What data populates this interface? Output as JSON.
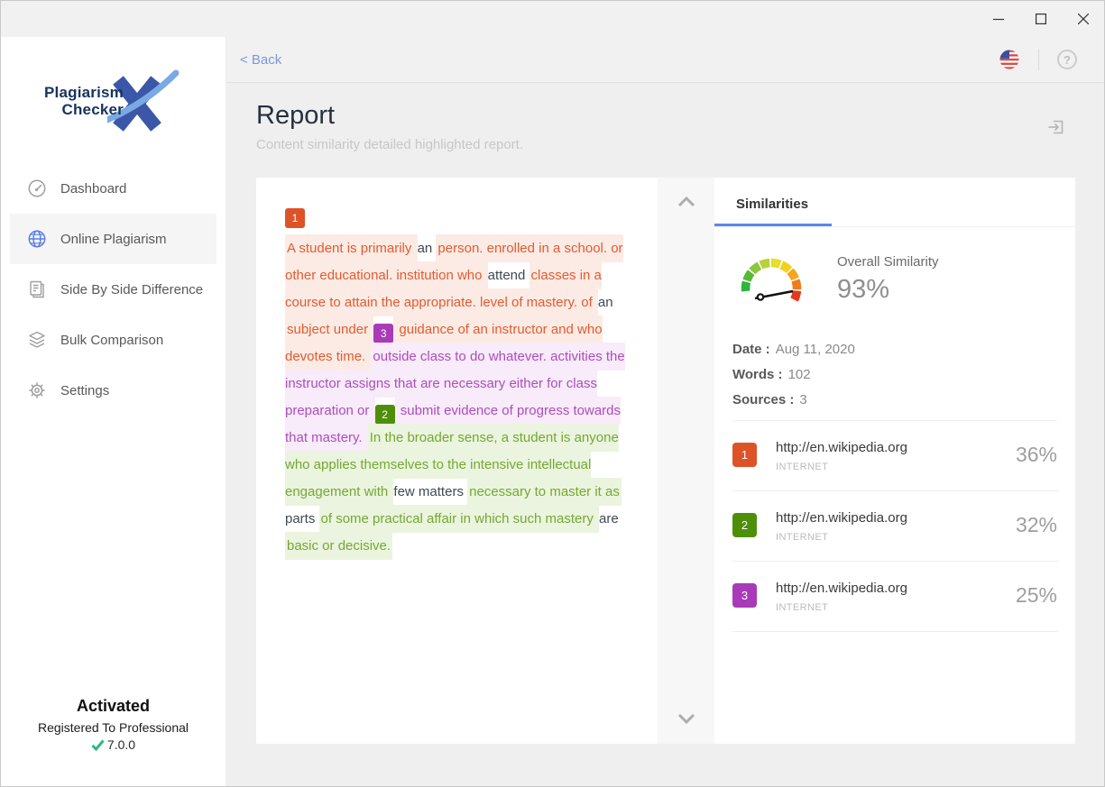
{
  "win": {
    "controls": [
      "minimize",
      "maximize",
      "close"
    ]
  },
  "sidebar": {
    "logo": {
      "line1": "Plagiarism",
      "line2": "Checker",
      "mark": "X"
    },
    "items": [
      {
        "label": "Dashboard",
        "icon": "speedometer-icon",
        "active": false
      },
      {
        "label": "Online Plagiarism",
        "icon": "globe-icon",
        "active": true
      },
      {
        "label": "Side By Side Difference",
        "icon": "side-by-side-icon",
        "active": false
      },
      {
        "label": "Bulk Comparison",
        "icon": "layers-icon",
        "active": false
      },
      {
        "label": "Settings",
        "icon": "gear-icon",
        "active": false
      }
    ],
    "activation": {
      "status": "Activated",
      "registered": "Registered To Professional",
      "version": "7.0.0"
    }
  },
  "topbar": {
    "back_label": "< Back",
    "help_label": "?",
    "flag_icon": "us-flag-icon"
  },
  "header": {
    "title": "Report",
    "subtitle": "Content similarity detailed highlighted report."
  },
  "document": {
    "badge_colors": {
      "1": "#DD5327",
      "2": "#4E8F0A",
      "3": "#A93AB8"
    },
    "segments": [
      {
        "t": "badge",
        "n": "1",
        "block": true
      },
      {
        "t": "hl",
        "c": "orange",
        "x": "A student is primarily "
      },
      {
        "t": "plain",
        "x": "an "
      },
      {
        "t": "hl",
        "c": "orange",
        "x": "person. enrolled in a school. or other educational. institution who "
      },
      {
        "t": "plain",
        "x": "attend "
      },
      {
        "t": "hl",
        "c": "orange",
        "x": "classes in a course to attain the appropriate. level of mastery. of "
      },
      {
        "t": "plain",
        "x": "an "
      },
      {
        "t": "hl",
        "c": "orange",
        "x": "subject under "
      },
      {
        "t": "badge",
        "n": "3",
        "block": false
      },
      {
        "t": "hl",
        "c": "orange",
        "x": " guidance of an instructor and who devotes time. "
      },
      {
        "t": "hl",
        "c": "purple",
        "x": "outside class to do whatever. activities the instructor assigns that are necessary either for class preparation or "
      },
      {
        "t": "badge",
        "n": "2",
        "block": false
      },
      {
        "t": "hl",
        "c": "purple",
        "x": " submit evidence of progress towards that mastery. "
      },
      {
        "t": "hl",
        "c": "green",
        "x": "In the broader sense, a student is anyone who applies themselves to the intensive intellectual engagement with "
      },
      {
        "t": "plain",
        "x": "few matters "
      },
      {
        "t": "hl",
        "c": "green",
        "x": "necessary to master it as "
      },
      {
        "t": "plain",
        "x": "parts "
      },
      {
        "t": "hl",
        "c": "green",
        "x": "of some practical affair in which such mastery "
      },
      {
        "t": "plain",
        "x": "are "
      },
      {
        "t": "hl",
        "c": "green",
        "x": "basic or decisive."
      }
    ]
  },
  "similarities": {
    "tab_label": "Similarities",
    "overall_label": "Overall Similarity",
    "overall_value": "93%",
    "gauge_colors": [
      "#2fb43c",
      "#59b937",
      "#8cc63b",
      "#b8d335",
      "#e6df2b",
      "#f5cf20",
      "#f6a61d",
      "#ef7d19",
      "#e5391d"
    ],
    "meta": [
      {
        "label": "Date :",
        "value": "Aug 11, 2020"
      },
      {
        "label": "Words :",
        "value": "102"
      },
      {
        "label": "Sources :",
        "value": "3"
      }
    ],
    "sources": [
      {
        "n": "1",
        "color": "#DD5327",
        "url": "http://en.wikipedia.org",
        "kind": "INTERNET",
        "percent": "36%"
      },
      {
        "n": "2",
        "color": "#4E8F0A",
        "url": "http://en.wikipedia.org",
        "kind": "INTERNET",
        "percent": "32%"
      },
      {
        "n": "3",
        "color": "#A93AB8",
        "url": "http://en.wikipedia.org",
        "kind": "INTERNET",
        "percent": "25%"
      }
    ]
  },
  "colors": {
    "accent_blue": "#5B87EA",
    "back_link": "#7B97E4",
    "check_green": "#2BB983"
  }
}
